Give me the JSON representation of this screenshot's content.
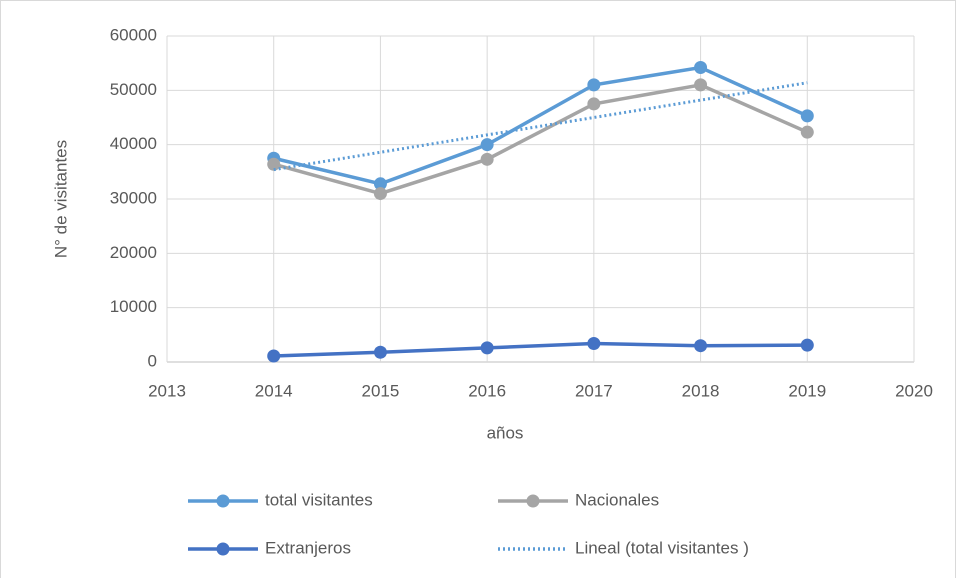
{
  "chart_data": {
    "type": "line",
    "x": [
      2014,
      2015,
      2016,
      2017,
      2018,
      2019
    ],
    "series": [
      {
        "name": "total visitantes",
        "color": "#5b9bd5",
        "marker": true,
        "values": [
          37500,
          32800,
          40000,
          51000,
          54200,
          45300
        ]
      },
      {
        "name": "Nacionales",
        "color": "#a5a5a5",
        "marker": true,
        "values": [
          36400,
          31000,
          37300,
          47500,
          51000,
          42300
        ]
      },
      {
        "name": "Extranjeros",
        "color": "#4472c4",
        "marker": true,
        "values": [
          1100,
          1800,
          2600,
          3400,
          3000,
          3100
        ]
      },
      {
        "name": "Lineal (total visitantes )",
        "color": "#5b9bd5",
        "marker": false,
        "dotted": true,
        "values": [
          35400,
          38600,
          41800,
          45000,
          48200,
          51400
        ]
      }
    ],
    "xlabel": "años",
    "ylabel": "N° de visitantes",
    "xlim": [
      2013,
      2020
    ],
    "xticks": [
      2013,
      2014,
      2015,
      2016,
      2017,
      2018,
      2019,
      2020
    ],
    "ylim": [
      0,
      60000
    ],
    "yticks": [
      0,
      10000,
      20000,
      30000,
      40000,
      50000,
      60000
    ],
    "grid": true,
    "legend": "bottom"
  }
}
